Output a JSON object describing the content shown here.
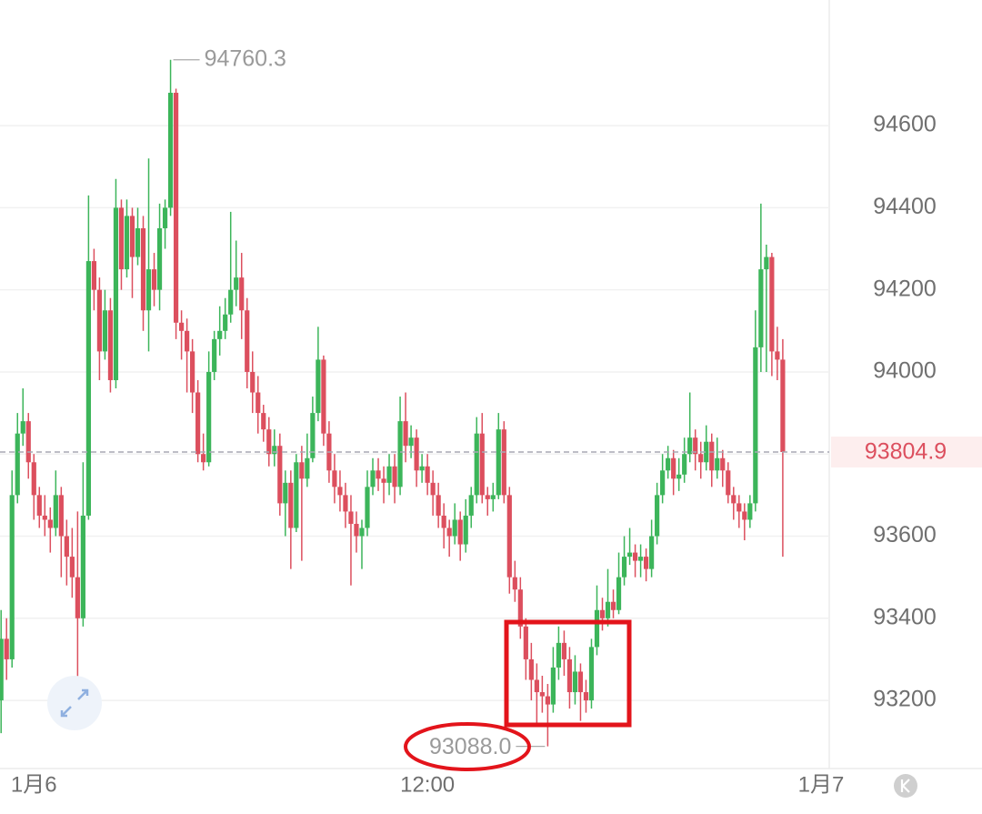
{
  "chart_data": {
    "type": "candlestick",
    "open": [
      93200,
      93350,
      93300,
      93700,
      93850,
      93880,
      93780,
      93700,
      93650,
      93640,
      93620,
      93700,
      93600,
      93550,
      93500,
      93400,
      93650,
      94270,
      94200,
      94050,
      94150,
      93980,
      94400,
      94250,
      94380,
      94280,
      94350,
      94150,
      94250,
      94200,
      94350,
      94400,
      94680,
      94120,
      94100,
      94050,
      93950,
      93800,
      93780,
      94000,
      94080,
      94100,
      94140,
      94200,
      94230,
      94150,
      94000,
      93950,
      93900,
      93860,
      93800,
      93820,
      93680,
      93730,
      93620,
      93780,
      93740,
      93790,
      93900,
      94030,
      93850,
      93760,
      93720,
      93700,
      93660,
      93630,
      93600,
      93620,
      93720,
      93760,
      93740,
      93730,
      93770,
      93720,
      93880,
      93820,
      93840,
      93760,
      93770,
      93730,
      93700,
      93650,
      93620,
      93600,
      93640,
      93580,
      93650,
      93700,
      93850,
      93700,
      93690,
      93700,
      93860,
      93700,
      93500,
      93470,
      93380,
      93300,
      93250,
      93220,
      93210,
      93190,
      93280,
      93340,
      93300,
      93220,
      93270,
      93220,
      93200,
      93330,
      93420,
      93400,
      93440,
      93420,
      93500,
      93550,
      93560,
      93540,
      93550,
      93520,
      93600,
      93700,
      93760,
      93790,
      93740,
      93750,
      93800,
      93840,
      93800,
      93780,
      93830,
      93760,
      93790,
      93760,
      93700,
      93680,
      93660,
      93640,
      93680,
      94060,
      94250,
      94280,
      94050,
      94030
    ],
    "high": [
      93420,
      93400,
      93760,
      93900,
      93960,
      93900,
      93800,
      93720,
      93700,
      93670,
      93760,
      93720,
      93640,
      93620,
      93660,
      93780,
      94430,
      94300,
      94230,
      94200,
      94180,
      94470,
      94420,
      94420,
      94400,
      94400,
      94380,
      94520,
      94290,
      94410,
      94420,
      94760.3,
      94690,
      94150,
      94130,
      94080,
      93980,
      93850,
      94050,
      94100,
      94160,
      94180,
      94390,
      94320,
      94290,
      94180,
      94050,
      93990,
      93920,
      93890,
      93860,
      93850,
      93760,
      93760,
      93800,
      93820,
      93850,
      93940,
      94110,
      94040,
      93880,
      93800,
      93760,
      93730,
      93700,
      93660,
      93640,
      93760,
      93790,
      93790,
      93770,
      93800,
      93800,
      93940,
      93950,
      93870,
      93860,
      93800,
      93800,
      93760,
      93730,
      93680,
      93640,
      93680,
      93660,
      93690,
      93720,
      93890,
      93900,
      93720,
      93730,
      93900,
      93880,
      93720,
      93540,
      93500,
      93400,
      93340,
      93290,
      93260,
      93240,
      93330,
      93380,
      93370,
      93330,
      93310,
      93290,
      93250,
      93350,
      93480,
      93450,
      93520,
      93470,
      93560,
      93600,
      93620,
      93580,
      93580,
      93570,
      93640,
      93730,
      93800,
      93820,
      93810,
      93790,
      93840,
      93950,
      93860,
      93830,
      93870,
      93850,
      93840,
      93810,
      93780,
      93720,
      93700,
      93680,
      93700,
      94150,
      94410,
      94310,
      94290,
      94110,
      94080
    ],
    "low": [
      93120,
      93250,
      93280,
      93680,
      93820,
      93740,
      93640,
      93620,
      93600,
      93560,
      93600,
      93500,
      93480,
      93450,
      93200,
      93380,
      93640,
      94150,
      93980,
      94030,
      93950,
      93960,
      94200,
      94230,
      94180,
      94260,
      94100,
      94050,
      94160,
      94150,
      94300,
      94380,
      94080,
      94030,
      93950,
      93900,
      93780,
      93760,
      93770,
      93980,
      94040,
      94080,
      94120,
      94160,
      94080,
      93960,
      93900,
      93850,
      93830,
      93770,
      93770,
      93650,
      93600,
      93520,
      93610,
      93540,
      93720,
      93780,
      93880,
      93820,
      93730,
      93680,
      93660,
      93620,
      93480,
      93560,
      93520,
      93600,
      93700,
      93710,
      93680,
      93700,
      93680,
      93700,
      93780,
      93790,
      93720,
      93730,
      93700,
      93650,
      93620,
      93570,
      93550,
      93580,
      93540,
      93560,
      93620,
      93680,
      93680,
      93650,
      93660,
      93690,
      93680,
      93460,
      93440,
      93350,
      93250,
      93200,
      93140,
      93170,
      93088,
      93170,
      93250,
      93260,
      93180,
      93190,
      93150,
      93170,
      93180,
      93310,
      93370,
      93380,
      93400,
      93410,
      93480,
      93530,
      93500,
      93500,
      93490,
      93500,
      93580,
      93680,
      93740,
      93700,
      93710,
      93730,
      93780,
      93760,
      93740,
      93760,
      93720,
      93740,
      93720,
      93680,
      93640,
      93620,
      93590,
      93620,
      93660,
      94000,
      94000,
      93990,
      93980,
      93550
    ],
    "close": [
      93350,
      93300,
      93700,
      93850,
      93880,
      93780,
      93700,
      93650,
      93640,
      93620,
      93700,
      93600,
      93550,
      93500,
      93400,
      93650,
      94270,
      94200,
      94050,
      94150,
      93980,
      94400,
      94250,
      94380,
      94280,
      94350,
      94150,
      94250,
      94200,
      94350,
      94400,
      94680,
      94120,
      94100,
      94050,
      93950,
      93800,
      93780,
      94000,
      94080,
      94100,
      94140,
      94200,
      94230,
      94150,
      94000,
      93950,
      93900,
      93860,
      93800,
      93820,
      93680,
      93730,
      93620,
      93780,
      93740,
      93790,
      93900,
      94030,
      93850,
      93760,
      93720,
      93700,
      93660,
      93630,
      93600,
      93620,
      93720,
      93760,
      93740,
      93730,
      93770,
      93720,
      93880,
      93820,
      93840,
      93760,
      93770,
      93730,
      93700,
      93650,
      93620,
      93600,
      93640,
      93580,
      93650,
      93700,
      93850,
      93700,
      93690,
      93700,
      93860,
      93700,
      93500,
      93470,
      93380,
      93300,
      93250,
      93220,
      93210,
      93190,
      93280,
      93340,
      93300,
      93220,
      93270,
      93220,
      93200,
      93330,
      93420,
      93400,
      93440,
      93420,
      93500,
      93550,
      93560,
      93540,
      93550,
      93520,
      93600,
      93700,
      93760,
      93790,
      93740,
      93750,
      93800,
      93840,
      93800,
      93780,
      93830,
      93760,
      93790,
      93760,
      93700,
      93680,
      93660,
      93640,
      93680,
      94060,
      94250,
      94280,
      94050,
      94030,
      93804.9
    ],
    "up_color": "#3cb55a",
    "down_color": "#dc4f5e",
    "max_label": "94760.3",
    "min_label": "93088.0",
    "last_label": "93804.9",
    "ylim": [
      93034,
      94906
    ],
    "yticks": [
      93200,
      93400,
      93600,
      93800,
      94000,
      94200,
      94400,
      94600
    ],
    "xlim": [
      -0.2,
      151.5
    ],
    "xticks": [
      {
        "value": 6,
        "label": "1月6"
      },
      {
        "value": 78,
        "label": "12:00"
      },
      {
        "value": 150,
        "label": "1月7"
      }
    ],
    "grid": true
  }
}
